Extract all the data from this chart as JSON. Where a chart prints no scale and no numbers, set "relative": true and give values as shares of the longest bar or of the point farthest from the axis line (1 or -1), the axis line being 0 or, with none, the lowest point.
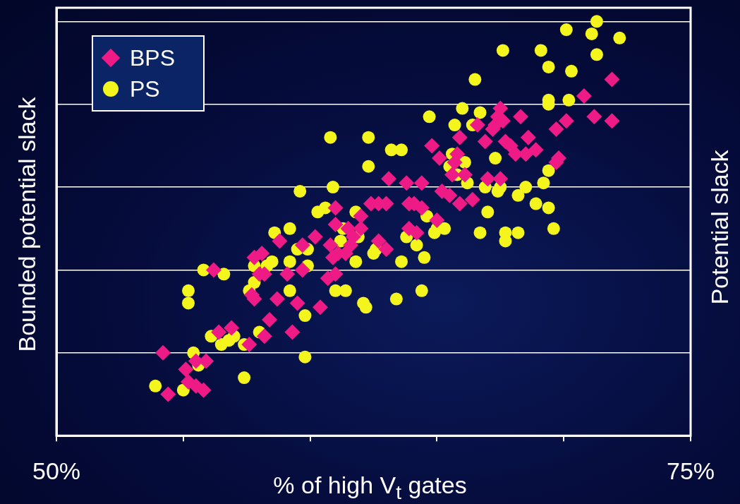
{
  "chart_data": {
    "type": "scatter",
    "xlabel": "% of high V$_{t}$ gates",
    "ylabel": "Bounded potential slack",
    "y2label": "Potential slack",
    "relative": true,
    "xlim": [
      50,
      75
    ],
    "xticks": [
      {
        "value": 50,
        "label": "50%"
      },
      {
        "value": 55,
        "label": null
      },
      {
        "value": 60,
        "label": null
      },
      {
        "value": 65,
        "label": null
      },
      {
        "value": 70,
        "label": null
      },
      {
        "value": 75,
        "label": "75%"
      }
    ],
    "grid": "y",
    "legend": "top left",
    "series": [
      {
        "name": "BPS",
        "color": "#ee1a85",
        "marker": "diamond",
        "x": [
          54.2,
          54.4,
          55.1,
          55.2,
          55.5,
          55.5,
          55.9,
          55.8,
          56.2,
          56.4,
          56.9,
          57.6,
          57.7,
          57.8,
          57.8,
          58.0,
          58.1,
          58.2,
          58.2,
          58.4,
          58.7,
          58.8,
          59.1,
          59.3,
          59.5,
          59.7,
          59.7,
          60.4,
          60.2,
          60.7,
          60.8,
          60.9,
          61.0,
          61.0,
          61.0,
          61.1,
          61.4,
          61.5,
          61.6,
          61.7,
          62.0,
          62.0,
          62.4,
          62.7,
          62.7,
          63.0,
          63.0,
          63.1,
          63.8,
          63.9,
          63.9,
          64.1,
          64.2,
          64.4,
          64.4,
          64.8,
          65.0,
          65.1,
          65.2,
          65.5,
          65.6,
          65.7,
          65.8,
          65.9,
          65.9,
          66.1,
          66.4,
          66.6,
          66.9,
          67.0,
          67.2,
          67.3,
          67.4,
          67.5,
          67.5,
          67.6,
          67.7,
          67.9,
          68.1,
          68.3,
          68.5,
          68.6,
          68.9,
          69.7,
          69.7,
          69.8,
          70.1,
          70.8,
          71.2,
          71.9,
          71.9
        ],
        "values": [
          0.2,
          0.1,
          0.16,
          0.13,
          0.18,
          0.12,
          0.18,
          0.11,
          0.4,
          0.25,
          0.26,
          0.22,
          0.34,
          0.43,
          0.33,
          0.39,
          0.44,
          0.39,
          0.24,
          0.28,
          0.33,
          0.47,
          0.39,
          0.25,
          0.32,
          0.4,
          0.46,
          0.31,
          0.48,
          0.38,
          0.46,
          0.43,
          0.55,
          0.51,
          0.39,
          0.44,
          0.44,
          0.5,
          0.46,
          0.48,
          0.53,
          0.5,
          0.56,
          0.47,
          0.56,
          0.56,
          0.45,
          0.62,
          0.61,
          0.5,
          0.56,
          0.56,
          0.49,
          0.55,
          0.61,
          0.7,
          0.52,
          0.67,
          0.59,
          0.58,
          0.63,
          0.66,
          0.68,
          0.56,
          0.72,
          0.63,
          0.57,
          0.75,
          0.71,
          0.62,
          0.74,
          0.75,
          0.77,
          0.79,
          0.62,
          0.76,
          0.71,
          0.7,
          0.68,
          0.77,
          0.68,
          0.72,
          0.69,
          0.74,
          0.66,
          0.67,
          0.76,
          0.82,
          0.77,
          0.86,
          0.76
        ]
      },
      {
        "name": "PS",
        "color": "#f5f51e",
        "marker": "circle",
        "x": [
          53.9,
          55.0,
          55.2,
          55.2,
          55.4,
          55.6,
          55.8,
          56.1,
          56.6,
          56.5,
          56.8,
          57.0,
          57.4,
          57.4,
          57.6,
          57.8,
          58.0,
          57.8,
          58.3,
          58.5,
          58.6,
          59.2,
          59.2,
          59.2,
          59.5,
          59.6,
          59.8,
          59.8,
          59.9,
          59.9,
          60.3,
          60.6,
          60.8,
          60.9,
          61.0,
          61.2,
          61.3,
          61.4,
          61.8,
          61.8,
          61.9,
          62.1,
          62.2,
          62.3,
          62.3,
          62.5,
          62.6,
          63.2,
          63.4,
          63.6,
          63.6,
          63.8,
          64.2,
          64.4,
          64.5,
          64.6,
          64.7,
          64.9,
          65.0,
          65.3,
          65.5,
          65.6,
          65.7,
          65.8,
          66.1,
          66.0,
          66.2,
          66.4,
          66.5,
          66.7,
          66.7,
          66.9,
          67.0,
          67.3,
          67.4,
          67.5,
          67.6,
          67.7,
          67.7,
          68.2,
          68.2,
          68.5,
          68.9,
          69.1,
          69.2,
          69.4,
          69.4,
          69.4,
          69.4,
          69.6,
          69.4,
          70.1,
          70.2,
          70.3,
          71.1,
          71.3,
          71.3,
          72.2
        ],
        "values": [
          0.12,
          0.11,
          0.35,
          0.32,
          0.2,
          0.17,
          0.4,
          0.24,
          0.39,
          0.22,
          0.23,
          0.24,
          0.14,
          0.22,
          0.35,
          0.37,
          0.25,
          0.41,
          0.41,
          0.42,
          0.49,
          0.5,
          0.35,
          0.42,
          0.45,
          0.59,
          0.19,
          0.29,
          0.41,
          0.45,
          0.54,
          0.55,
          0.72,
          0.6,
          0.35,
          0.47,
          0.5,
          0.35,
          0.54,
          0.42,
          0.48,
          0.32,
          0.31,
          0.72,
          0.65,
          0.44,
          0.45,
          0.69,
          0.33,
          0.69,
          0.42,
          0.48,
          0.46,
          0.35,
          0.43,
          0.53,
          0.77,
          0.49,
          0.5,
          0.5,
          0.65,
          0.68,
          0.75,
          0.63,
          0.66,
          0.79,
          0.61,
          0.75,
          0.86,
          0.78,
          0.49,
          0.6,
          0.54,
          0.67,
          0.59,
          0.6,
          0.93,
          0.49,
          0.47,
          0.58,
          0.49,
          0.6,
          0.56,
          0.93,
          0.61,
          0.89,
          0.55,
          0.81,
          0.8,
          0.5,
          0.64,
          0.98,
          0.81,
          0.88,
          0.97,
          1.0,
          0.92,
          0.96
        ]
      }
    ]
  }
}
